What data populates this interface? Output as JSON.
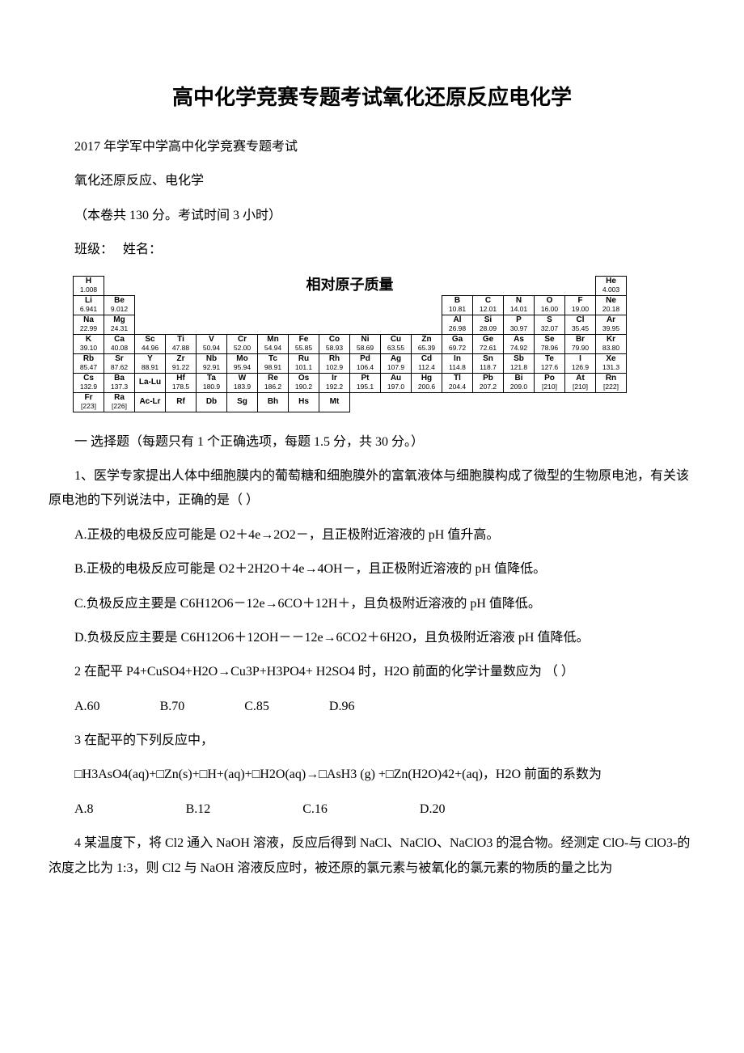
{
  "title": "高中化学竞赛专题考试氧化还原反应电化学",
  "header1": "2017 年学军中学高中化学竞赛专题考试",
  "header2": "氧化还原反应、电化学",
  "header3": "（本卷共 130 分。考试时间 3 小时）",
  "header4": "班级：　 姓名：",
  "ptable_title": "相对原子质量",
  "periodic": {
    "rows": [
      [
        {
          "s": "H",
          "m": "1.008"
        },
        null,
        null,
        null,
        null,
        null,
        null,
        null,
        null,
        null,
        null,
        null,
        null,
        null,
        null,
        null,
        null,
        {
          "s": "He",
          "m": "4.003"
        }
      ],
      [
        {
          "s": "Li",
          "m": "6.941"
        },
        {
          "s": "Be",
          "m": "9.012"
        },
        null,
        null,
        null,
        null,
        null,
        null,
        null,
        null,
        null,
        null,
        {
          "s": "B",
          "m": "10.81"
        },
        {
          "s": "C",
          "m": "12.01"
        },
        {
          "s": "N",
          "m": "14.01"
        },
        {
          "s": "O",
          "m": "16.00"
        },
        {
          "s": "F",
          "m": "19.00"
        },
        {
          "s": "Ne",
          "m": "20.18"
        }
      ],
      [
        {
          "s": "Na",
          "m": "22.99"
        },
        {
          "s": "Mg",
          "m": "24.31"
        },
        null,
        null,
        null,
        null,
        null,
        null,
        null,
        null,
        null,
        null,
        {
          "s": "Al",
          "m": "26.98"
        },
        {
          "s": "Si",
          "m": "28.09"
        },
        {
          "s": "P",
          "m": "30.97"
        },
        {
          "s": "S",
          "m": "32.07"
        },
        {
          "s": "Cl",
          "m": "35.45"
        },
        {
          "s": "Ar",
          "m": "39.95"
        }
      ],
      [
        {
          "s": "K",
          "m": "39.10"
        },
        {
          "s": "Ca",
          "m": "40.08"
        },
        {
          "s": "Sc",
          "m": "44.96"
        },
        {
          "s": "Ti",
          "m": "47.88"
        },
        {
          "s": "V",
          "m": "50.94"
        },
        {
          "s": "Cr",
          "m": "52.00"
        },
        {
          "s": "Mn",
          "m": "54.94"
        },
        {
          "s": "Fe",
          "m": "55.85"
        },
        {
          "s": "Co",
          "m": "58.93"
        },
        {
          "s": "Ni",
          "m": "58.69"
        },
        {
          "s": "Cu",
          "m": "63.55"
        },
        {
          "s": "Zn",
          "m": "65.39"
        },
        {
          "s": "Ga",
          "m": "69.72"
        },
        {
          "s": "Ge",
          "m": "72.61"
        },
        {
          "s": "As",
          "m": "74.92"
        },
        {
          "s": "Se",
          "m": "78.96"
        },
        {
          "s": "Br",
          "m": "79.90"
        },
        {
          "s": "Kr",
          "m": "83.80"
        }
      ],
      [
        {
          "s": "Rb",
          "m": "85.47"
        },
        {
          "s": "Sr",
          "m": "87.62"
        },
        {
          "s": "Y",
          "m": "88.91"
        },
        {
          "s": "Zr",
          "m": "91.22"
        },
        {
          "s": "Nb",
          "m": "92.91"
        },
        {
          "s": "Mo",
          "m": "95.94"
        },
        {
          "s": "Tc",
          "m": "98.91"
        },
        {
          "s": "Ru",
          "m": "101.1"
        },
        {
          "s": "Rh",
          "m": "102.9"
        },
        {
          "s": "Pd",
          "m": "106.4"
        },
        {
          "s": "Ag",
          "m": "107.9"
        },
        {
          "s": "Cd",
          "m": "112.4"
        },
        {
          "s": "In",
          "m": "114.8"
        },
        {
          "s": "Sn",
          "m": "118.7"
        },
        {
          "s": "Sb",
          "m": "121.8"
        },
        {
          "s": "Te",
          "m": "127.6"
        },
        {
          "s": "I",
          "m": "126.9"
        },
        {
          "s": "Xe",
          "m": "131.3"
        }
      ],
      [
        {
          "s": "Cs",
          "m": "132.9"
        },
        {
          "s": "Ba",
          "m": "137.3"
        },
        {
          "s": "La-Lu",
          "m": ""
        },
        {
          "s": "Hf",
          "m": "178.5"
        },
        {
          "s": "Ta",
          "m": "180.9"
        },
        {
          "s": "W",
          "m": "183.9"
        },
        {
          "s": "Re",
          "m": "186.2"
        },
        {
          "s": "Os",
          "m": "190.2"
        },
        {
          "s": "Ir",
          "m": "192.2"
        },
        {
          "s": "Pt",
          "m": "195.1"
        },
        {
          "s": "Au",
          "m": "197.0"
        },
        {
          "s": "Hg",
          "m": "200.6"
        },
        {
          "s": "Tl",
          "m": "204.4"
        },
        {
          "s": "Pb",
          "m": "207.2"
        },
        {
          "s": "Bi",
          "m": "209.0"
        },
        {
          "s": "Po",
          "m": "[210]"
        },
        {
          "s": "At",
          "m": "[210]"
        },
        {
          "s": "Rn",
          "m": "[222]"
        }
      ],
      [
        {
          "s": "Fr",
          "m": "[223]"
        },
        {
          "s": "Ra",
          "m": "[226]"
        },
        {
          "s": "Ac-Lr",
          "m": ""
        },
        {
          "s": "Rf",
          "m": ""
        },
        {
          "s": "Db",
          "m": ""
        },
        {
          "s": "Sg",
          "m": ""
        },
        {
          "s": "Bh",
          "m": ""
        },
        {
          "s": "Hs",
          "m": ""
        },
        {
          "s": "Mt",
          "m": ""
        },
        null,
        null,
        null,
        null,
        null,
        null,
        null,
        null,
        null
      ]
    ]
  },
  "section1": "一 选择题（每题只有 1 个正确选项，每题 1.5 分，共 30 分。）",
  "q1_stem": "1、医学专家提出人体中细胞膜内的葡萄糖和细胞膜外的富氧液体与细胞膜构成了微型的生物原电池，有关该原电池的下列说法中，正确的是（ ）",
  "q1_a": "A.正极的电极反应可能是 O2＋4e→2O2－，且正极附近溶液的 pH 值升高。",
  "q1_b": "B.正极的电极反应可能是 O2＋2H2O＋4e→4OH－，且正极附近溶液的 pH 值降低。",
  "q1_c": "C.负极反应主要是 C6H12O6－12e→6CO＋12H＋，且负极附近溶液的 pH 值降低。",
  "q1_d": "D.负极反应主要是 C6H12O6＋12OH－－12e→6CO2＋6H2O，且负极附近溶液 pH 值降低。",
  "q2_stem": "2 在配平 P4+CuSO4+H2O→Cu3P+H3PO4+ H2SO4 时，H2O 前面的化学计量数应为 （ ）",
  "q2_opts": {
    "a": "A.60",
    "b": "B.70",
    "c": "C.85",
    "d": "D.96"
  },
  "q3_stem": "3 在配平的下列反应中，",
  "q3_eq": "　　□H3AsO4(aq)+□Zn(s)+□H+(aq)+□H2O(aq)→□AsH3 (g) +□Zn(H2O)42+(aq)，H2O 前面的系数为",
  "q3_opts": {
    "a": "A.8",
    "b": "B.12",
    "c": "C.16",
    "d": "D.20"
  },
  "q4_stem": "4 某温度下，将 Cl2 通入 NaOH 溶液，反应后得到 NaCl、NaClO、NaClO3 的混合物。经测定 ClO-与 ClO3-的浓度之比为 1:3，则 Cl2 与 NaOH 溶液反应时，被还原的氯元素与被氧化的氯元素的物质的量之比为"
}
